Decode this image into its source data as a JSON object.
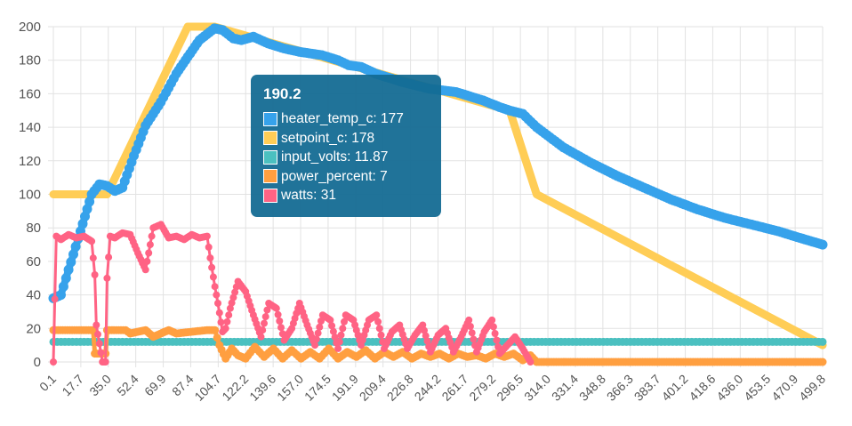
{
  "chart_data": {
    "type": "line",
    "title": "",
    "xlabel": "",
    "ylabel": "",
    "ylim": [
      0,
      200
    ],
    "y_ticks": [
      "0",
      "20",
      "40",
      "60",
      "80",
      "100",
      "120",
      "140",
      "160",
      "180",
      "200"
    ],
    "x_range": [
      0.1,
      499.8
    ],
    "x_ticks": [
      "0.1",
      "17.7",
      "35.0",
      "52.4",
      "69.9",
      "87.4",
      "104.7",
      "122.2",
      "139.6",
      "157.0",
      "174.5",
      "191.9",
      "209.4",
      "226.8",
      "244.2",
      "261.7",
      "279.2",
      "296.5",
      "314.0",
      "331.4",
      "348.8",
      "366.3",
      "383.7",
      "401.2",
      "418.6",
      "436.0",
      "453.5",
      "470.9",
      "499.8"
    ],
    "series": [
      {
        "name": "heater_temp_c",
        "color": "#36a2eb",
        "x": [
          0.1,
          5,
          10,
          17.7,
          25,
          30,
          35,
          40,
          45,
          52.4,
          60,
          69.9,
          80,
          87.4,
          95,
          104.7,
          110,
          117,
          122.2,
          130,
          139.6,
          150,
          160,
          174.5,
          185,
          191.9,
          200,
          209.4,
          226.8,
          244.2,
          261.7,
          279.2,
          290,
          296.5,
          305,
          314,
          331.4,
          348.8,
          366.3,
          383.7,
          401.2,
          418.6,
          436,
          453.5,
          470.9,
          485,
          499.8
        ],
        "y": [
          38,
          40,
          55,
          78,
          100,
          106,
          105,
          102,
          104,
          123,
          141,
          155,
          172,
          182,
          192,
          199,
          198,
          193,
          192,
          194,
          190,
          187,
          185,
          183,
          180,
          177,
          176,
          172,
          167,
          163,
          161,
          156,
          152,
          150,
          148,
          140,
          128,
          119,
          111,
          104,
          97,
          91,
          86,
          82,
          78,
          74,
          70
        ]
      },
      {
        "name": "setpoint_c",
        "color": "#ffcd56",
        "x": [
          0.1,
          35,
          87.4,
          104.7,
          296.5,
          314,
          499.8
        ],
        "y": [
          100,
          100,
          200,
          200,
          150,
          100,
          10
        ]
      },
      {
        "name": "input_volts",
        "color": "#4bc0c0",
        "x": [
          0.1,
          499.8
        ],
        "y": [
          12,
          12
        ]
      },
      {
        "name": "power_percent",
        "color": "#ff9f40",
        "x": [
          0.1,
          26,
          27,
          34,
          35,
          47,
          50,
          60,
          65,
          75,
          80,
          100,
          105,
          108,
          112,
          116,
          120,
          125,
          131,
          137,
          143,
          149,
          155,
          161,
          167,
          173,
          179,
          185,
          191,
          197,
          203,
          209,
          215,
          221,
          227,
          233,
          239,
          245,
          251,
          257,
          263,
          269,
          275,
          281,
          287,
          293,
          299,
          305,
          310,
          314,
          330,
          350,
          400,
          450,
          499.8
        ],
        "y": [
          19,
          19,
          5,
          5,
          19,
          19,
          17,
          19,
          15,
          19,
          17,
          19,
          19,
          10,
          2,
          8,
          4,
          2,
          9,
          3,
          8,
          2,
          7,
          2,
          6,
          2,
          8,
          2,
          6,
          3,
          7,
          2,
          6,
          3,
          6,
          2,
          5,
          3,
          5,
          2,
          5,
          3,
          4,
          2,
          5,
          3,
          5,
          1,
          4,
          0,
          0,
          0,
          0,
          0,
          0
        ]
      },
      {
        "name": "watts",
        "color": "#ff6384",
        "x": [
          0.1,
          2,
          5,
          10,
          15,
          20,
          25,
          27,
          28,
          32,
          34,
          35,
          37,
          40,
          45,
          50,
          55,
          60,
          65,
          70,
          75,
          80,
          85,
          90,
          95,
          100,
          102,
          105,
          107,
          110,
          112,
          115,
          120,
          125,
          130,
          135,
          140,
          145,
          150,
          155,
          160,
          165,
          170,
          175,
          180,
          185,
          190,
          195,
          200,
          205,
          210,
          215,
          220,
          225,
          230,
          235,
          240,
          245,
          250,
          255,
          260,
          265,
          270,
          275,
          280,
          285,
          290,
          295,
          300,
          305,
          310
        ],
        "y": [
          0,
          75,
          73,
          76,
          74,
          75,
          72,
          52,
          22,
          0,
          0,
          50,
          75,
          74,
          77,
          76,
          65,
          55,
          80,
          82,
          74,
          75,
          73,
          76,
          74,
          75,
          62,
          45,
          35,
          18,
          20,
          32,
          48,
          42,
          28,
          15,
          35,
          32,
          13,
          20,
          35,
          22,
          10,
          28,
          25,
          8,
          28,
          25,
          10,
          25,
          28,
          8,
          18,
          22,
          8,
          16,
          22,
          6,
          16,
          20,
          6,
          15,
          25,
          6,
          18,
          25,
          5,
          10,
          15,
          8,
          0
        ]
      }
    ],
    "tooltip": {
      "title": "190.2",
      "items": [
        {
          "label": "heater_temp_c: 177",
          "color": "#36a2eb"
        },
        {
          "label": "setpoint_c: 178",
          "color": "#ffcd56"
        },
        {
          "label": "input_volts: 11.87",
          "color": "#4bc0c0"
        },
        {
          "label": "power_percent: 7",
          "color": "#ff9f40"
        },
        {
          "label": "watts: 31",
          "color": "#ff6384"
        }
      ]
    }
  }
}
